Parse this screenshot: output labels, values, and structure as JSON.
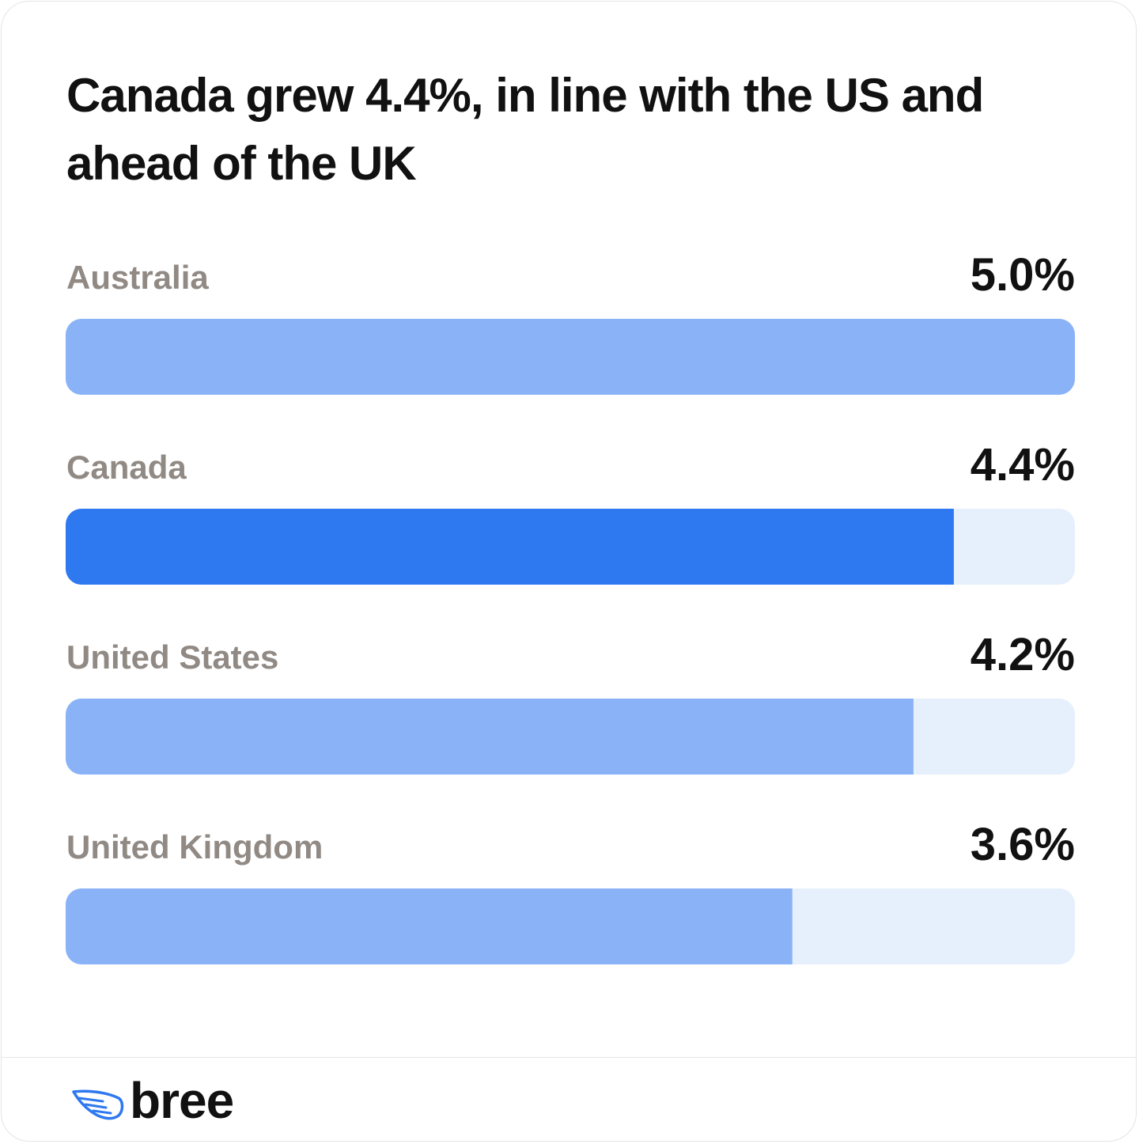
{
  "chart_data": {
    "type": "hbar",
    "title": "Canada grew 4.4%, in line with the US and ahead of the UK",
    "categories": [
      "Australia",
      "Canada",
      "United States",
      "United Kingdom"
    ],
    "values": [
      5.0,
      4.4,
      4.2,
      3.6
    ],
    "value_labels": [
      "5.0%",
      "4.4%",
      "4.2%",
      "3.6%"
    ],
    "colors": [
      "#8ab2f7",
      "#2e78f0",
      "#8ab2f7",
      "#8ab2f7"
    ],
    "track_color": "#e6effc",
    "xlim": [
      0,
      5
    ]
  },
  "footer": {
    "brand": "bree"
  }
}
